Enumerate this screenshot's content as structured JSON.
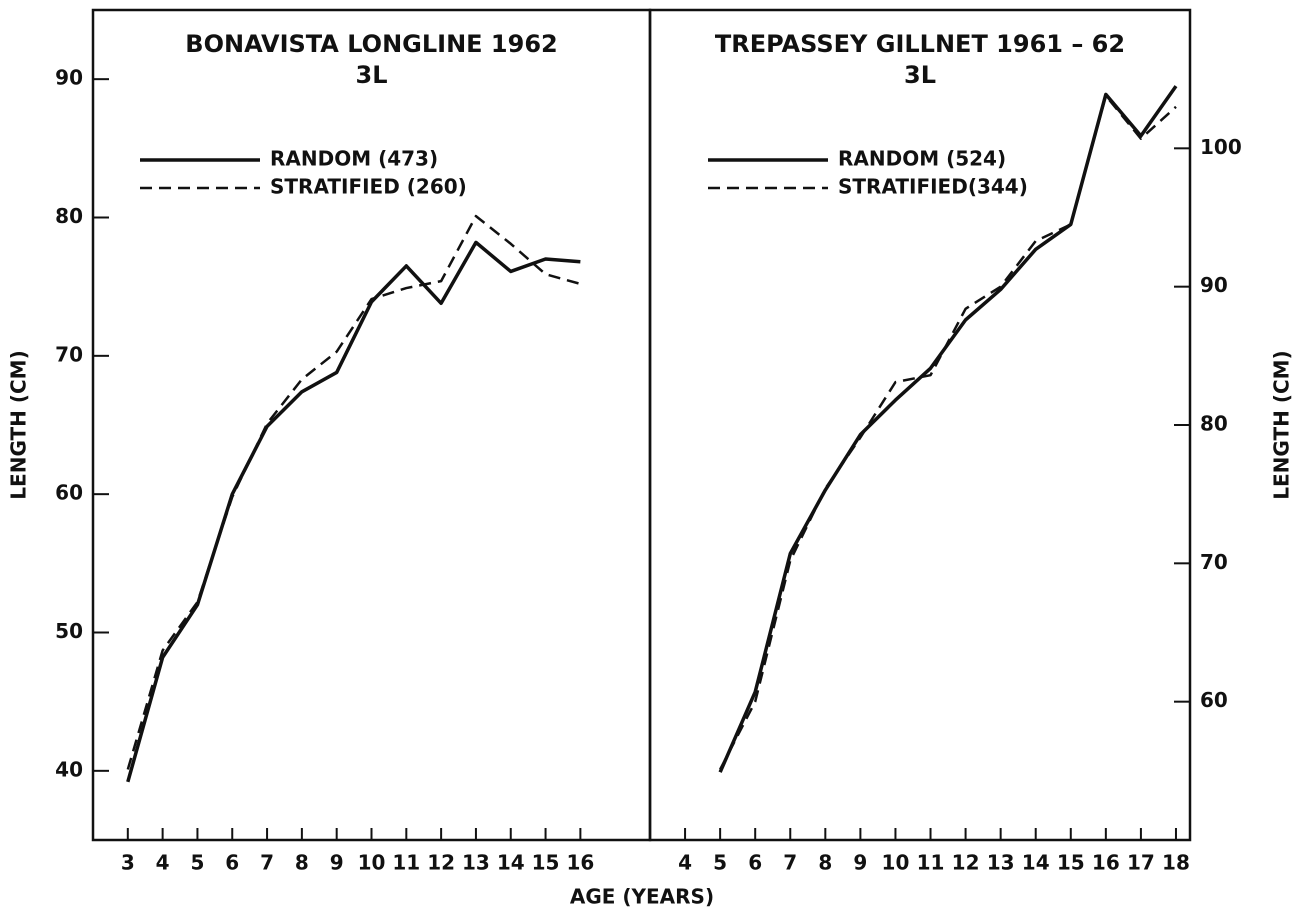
{
  "chart_data": [
    {
      "type": "line",
      "title": "BONAVISTA LONGLINE 1962",
      "subtitle": "3L",
      "xlabel": "AGE (YEARS)",
      "ylabel": "LENGTH (CM)",
      "yaxis_side": "left",
      "legend": "upper left",
      "x": [
        3,
        4,
        5,
        6,
        7,
        8,
        9,
        10,
        11,
        12,
        13,
        14,
        15,
        16
      ],
      "xlim": [
        2,
        18
      ],
      "xticks": [
        3,
        4,
        5,
        6,
        7,
        8,
        9,
        10,
        11,
        12,
        13,
        14,
        15,
        16
      ],
      "ylim": [
        35,
        95
      ],
      "yticks": [
        40,
        50,
        60,
        70,
        80,
        90
      ],
      "series": [
        {
          "name": "RANDOM (473)",
          "color": "#111111",
          "style": "solid",
          "values": [
            39.2,
            48.2,
            52,
            60,
            64.9,
            67.4,
            68.8,
            73.9,
            76.5,
            73.8,
            78.2,
            76.1,
            77,
            76.8
          ]
        },
        {
          "name": "STRATIFIED (260)",
          "color": "#111111",
          "style": "dashed",
          "values": [
            40.1,
            48.7,
            52.2,
            59.8,
            65.1,
            68.3,
            70.3,
            74.1,
            74.9,
            75.4,
            80.1,
            78.1,
            75.9,
            75.2
          ]
        }
      ]
    },
    {
      "type": "line",
      "title": "TREPASSEY GILLNET 1961 – 62",
      "subtitle": "3L",
      "ylabel": "LENGTH (CM)",
      "yaxis_side": "right",
      "legend": "upper left",
      "x": [
        5,
        6,
        7,
        8,
        9,
        10,
        11,
        12,
        13,
        14,
        15,
        16,
        17,
        18
      ],
      "xlim": [
        3,
        18.4
      ],
      "xticks": [
        4,
        5,
        6,
        7,
        8,
        9,
        10,
        11,
        12,
        13,
        14,
        15,
        16,
        17,
        18
      ],
      "ylim": [
        50,
        110
      ],
      "yticks": [
        60,
        70,
        80,
        90,
        100
      ],
      "series": [
        {
          "name": "RANDOM (524)",
          "color": "#111111",
          "style": "solid",
          "values": [
            54.9,
            60.7,
            70.7,
            75.3,
            79.3,
            81.8,
            84.1,
            87.6,
            89.8,
            92.7,
            94.5,
            103.9,
            100.9,
            104.5
          ]
        },
        {
          "name": "STRATIFIED(344)",
          "color": "#111111",
          "style": "dashed",
          "values": [
            55.1,
            60,
            70.2,
            75.4,
            79.1,
            83.1,
            83.6,
            88.4,
            90,
            93.3,
            94.5,
            103.8,
            100.7,
            103
          ]
        }
      ]
    }
  ]
}
